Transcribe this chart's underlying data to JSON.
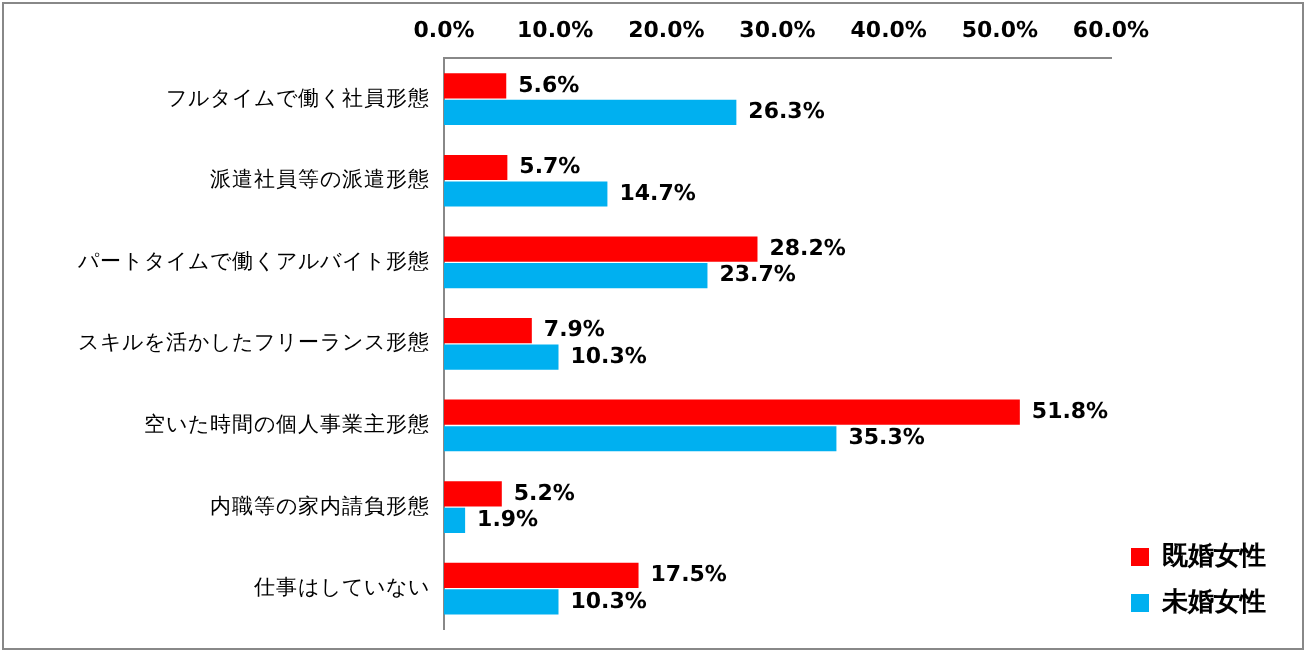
{
  "chart_data": {
    "type": "bar",
    "orientation": "horizontal",
    "categories": [
      "フルタイムで働く社員形態",
      "派遣社員等の派遣形態",
      "パートタイムで働くアルバイト形態",
      "スキルを活かしたフリーランス形態",
      "空いた時間の個人事業主形態",
      "内職等の家内請負形態",
      "仕事はしていない"
    ],
    "series": [
      {
        "name": "既婚女性",
        "color": "#ff0000",
        "values": [
          5.6,
          5.7,
          28.2,
          7.9,
          51.8,
          5.2,
          17.5
        ],
        "value_labels": [
          "5.6%",
          "5.7%",
          "28.2%",
          "7.9%",
          "51.8%",
          "5.2%",
          "17.5%"
        ]
      },
      {
        "name": "未婚女性",
        "color": "#00b0f0",
        "values": [
          26.3,
          14.7,
          23.7,
          10.3,
          35.3,
          1.9,
          10.3
        ],
        "value_labels": [
          "26.3%",
          "14.7%",
          "23.7%",
          "10.3%",
          "35.3%",
          "1.9%",
          "10.3%"
        ]
      }
    ],
    "xlim": [
      0,
      60
    ],
    "xticks": [
      {
        "value": 0,
        "label": "0.0%"
      },
      {
        "value": 10,
        "label": "10.0%"
      },
      {
        "value": 20,
        "label": "20.0%"
      },
      {
        "value": 30,
        "label": "30.0%"
      },
      {
        "value": 40,
        "label": "40.0%"
      },
      {
        "value": 50,
        "label": "50.0%"
      },
      {
        "value": 60,
        "label": "60.0%"
      }
    ],
    "grid": false,
    "legend": "bottom right"
  }
}
